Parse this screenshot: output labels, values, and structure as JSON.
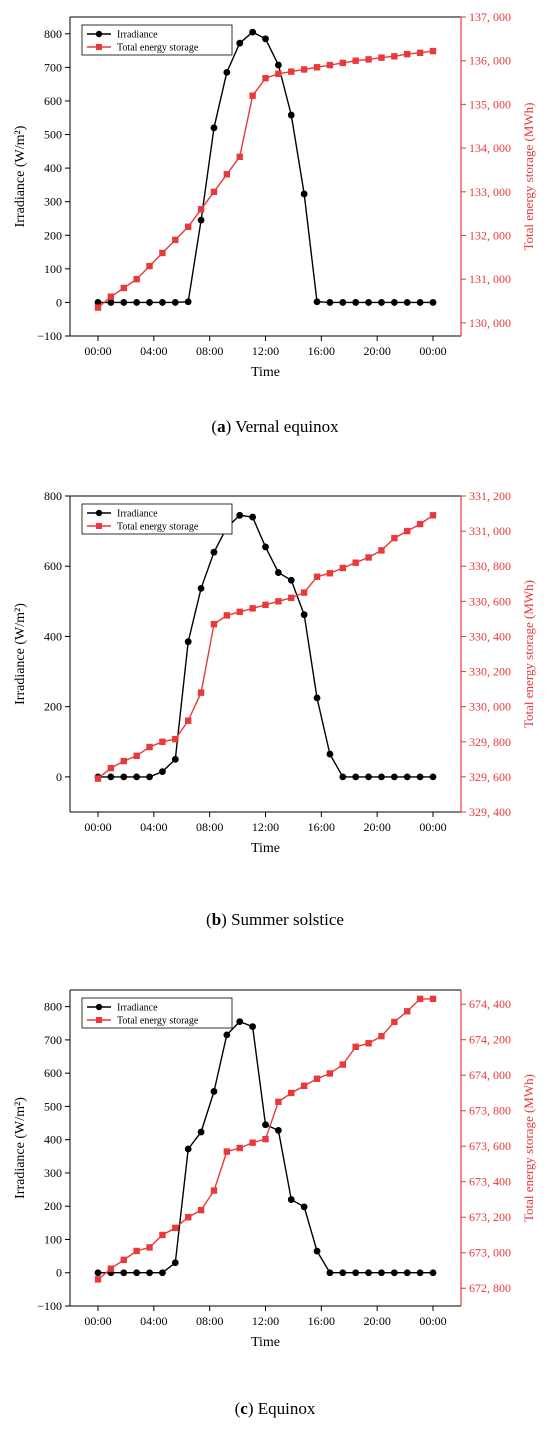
{
  "colors": {
    "irradiance": "#000000",
    "storage": "#e8393b"
  },
  "chart_data": [
    {
      "type": "line",
      "caption_letter": "a",
      "caption_text": "Vernal equinox",
      "xlabel": "Time",
      "ylabel": "Irradiance (W/m²)",
      "ylabel2": "Total energy storage (MWh)",
      "x_ticks": [
        "00:00",
        "04:00",
        "08:00",
        "12:00",
        "16:00",
        "20:00",
        "00:00"
      ],
      "ylim": [
        -100,
        850
      ],
      "y_ticks": [
        -100,
        0,
        100,
        200,
        300,
        400,
        500,
        600,
        700,
        800
      ],
      "y_tick_labels": [
        "−100",
        "0",
        "100",
        "200",
        "300",
        "400",
        "500",
        "600",
        "700",
        "800"
      ],
      "ylim2": [
        129700,
        137000
      ],
      "y2_ticks": [
        130000,
        131000,
        132000,
        133000,
        134000,
        135000,
        136000,
        137000
      ],
      "y2_tick_labels": [
        "130, 000",
        "131, 000",
        "132, 000",
        "133, 000",
        "134, 000",
        "135, 000",
        "136, 000",
        "137, 000"
      ],
      "legend_position": "top-left",
      "series": [
        {
          "name": "Irradiance",
          "axis": "left",
          "values": [
            0,
            0,
            0,
            0,
            0,
            0,
            0,
            2,
            245,
            520,
            685,
            772,
            805,
            785,
            707,
            558,
            323,
            2,
            0,
            0,
            0,
            0,
            0,
            0,
            0,
            0,
            0
          ]
        },
        {
          "name": "Total energy storage",
          "axis": "right",
          "values": [
            130350,
            130600,
            130800,
            131000,
            131300,
            131600,
            131900,
            132200,
            132600,
            133000,
            133400,
            133800,
            135200,
            135600,
            135700,
            135750,
            135800,
            135850,
            135900,
            135950,
            136000,
            136030,
            136070,
            136100,
            136150,
            136180,
            136220
          ]
        }
      ]
    },
    {
      "type": "line",
      "caption_letter": "b",
      "caption_text": "Summer solstice",
      "xlabel": "Time",
      "ylabel": "Irradiance (W/m²)",
      "ylabel2": "Total energy storage (MWh)",
      "x_ticks": [
        "00:00",
        "04:00",
        "08:00",
        "12:00",
        "16:00",
        "20:00",
        "00:00"
      ],
      "ylim": [
        -100,
        800
      ],
      "y_ticks": [
        0,
        200,
        400,
        600,
        800
      ],
      "y_tick_labels": [
        "0",
        "200",
        "400",
        "600",
        "800"
      ],
      "ylim2": [
        329400,
        331200
      ],
      "y2_ticks": [
        329400,
        329600,
        329800,
        330000,
        330200,
        330400,
        330600,
        330800,
        331000,
        331200
      ],
      "y2_tick_labels": [
        "329, 400",
        "329, 600",
        "329, 800",
        "330, 000",
        "330, 200",
        "330, 400",
        "330, 600",
        "330, 800",
        "331, 000",
        "331, 200"
      ],
      "legend_position": "top-left",
      "series": [
        {
          "name": "Irradiance",
          "axis": "left",
          "values": [
            0,
            0,
            0,
            0,
            0,
            15,
            50,
            385,
            537,
            640,
            710,
            745,
            740,
            655,
            582,
            560,
            462,
            225,
            65,
            0,
            0,
            0,
            0,
            0,
            0,
            0,
            0
          ]
        },
        {
          "name": "Total energy storage",
          "axis": "right",
          "values": [
            329590,
            329650,
            329690,
            329720,
            329770,
            329800,
            329815,
            329920,
            330080,
            330470,
            330520,
            330540,
            330560,
            330580,
            330600,
            330620,
            330650,
            330740,
            330760,
            330790,
            330820,
            330850,
            330890,
            330960,
            331000,
            331040,
            331090
          ]
        }
      ]
    },
    {
      "type": "line",
      "caption_letter": "c",
      "caption_text": "Equinox",
      "xlabel": "Time",
      "ylabel": "Irradiance (W/m²)",
      "ylabel2": "Total energy storage (MWh)",
      "x_ticks": [
        "00:00",
        "04:00",
        "08:00",
        "12:00",
        "16:00",
        "20:00",
        "00:00"
      ],
      "ylim": [
        -100,
        850
      ],
      "y_ticks": [
        -100,
        0,
        100,
        200,
        300,
        400,
        500,
        600,
        700,
        800
      ],
      "y_tick_labels": [
        "−100",
        "0",
        "100",
        "200",
        "300",
        "400",
        "500",
        "600",
        "700",
        "800"
      ],
      "ylim2": [
        672700,
        674480
      ],
      "y2_ticks": [
        672800,
        673000,
        673200,
        673400,
        673600,
        673800,
        674000,
        674200,
        674400
      ],
      "y2_tick_labels": [
        "672, 800",
        "673, 000",
        "673, 200",
        "673, 400",
        "673, 600",
        "673, 800",
        "674, 000",
        "674, 200",
        "674, 400"
      ],
      "legend_position": "top-left",
      "series": [
        {
          "name": "Irradiance",
          "axis": "left",
          "values": [
            0,
            0,
            0,
            0,
            0,
            0,
            30,
            372,
            423,
            545,
            715,
            755,
            740,
            445,
            428,
            220,
            198,
            65,
            0,
            0,
            0,
            0,
            0,
            0,
            0,
            0,
            0
          ]
        },
        {
          "name": "Total energy storage",
          "axis": "right",
          "values": [
            672850,
            672910,
            672960,
            673010,
            673030,
            673100,
            673140,
            673200,
            673240,
            673350,
            673570,
            673590,
            673620,
            673640,
            673850,
            673900,
            673940,
            673980,
            674010,
            674060,
            674160,
            674180,
            674220,
            674300,
            674360,
            674430,
            674430
          ]
        }
      ]
    }
  ]
}
